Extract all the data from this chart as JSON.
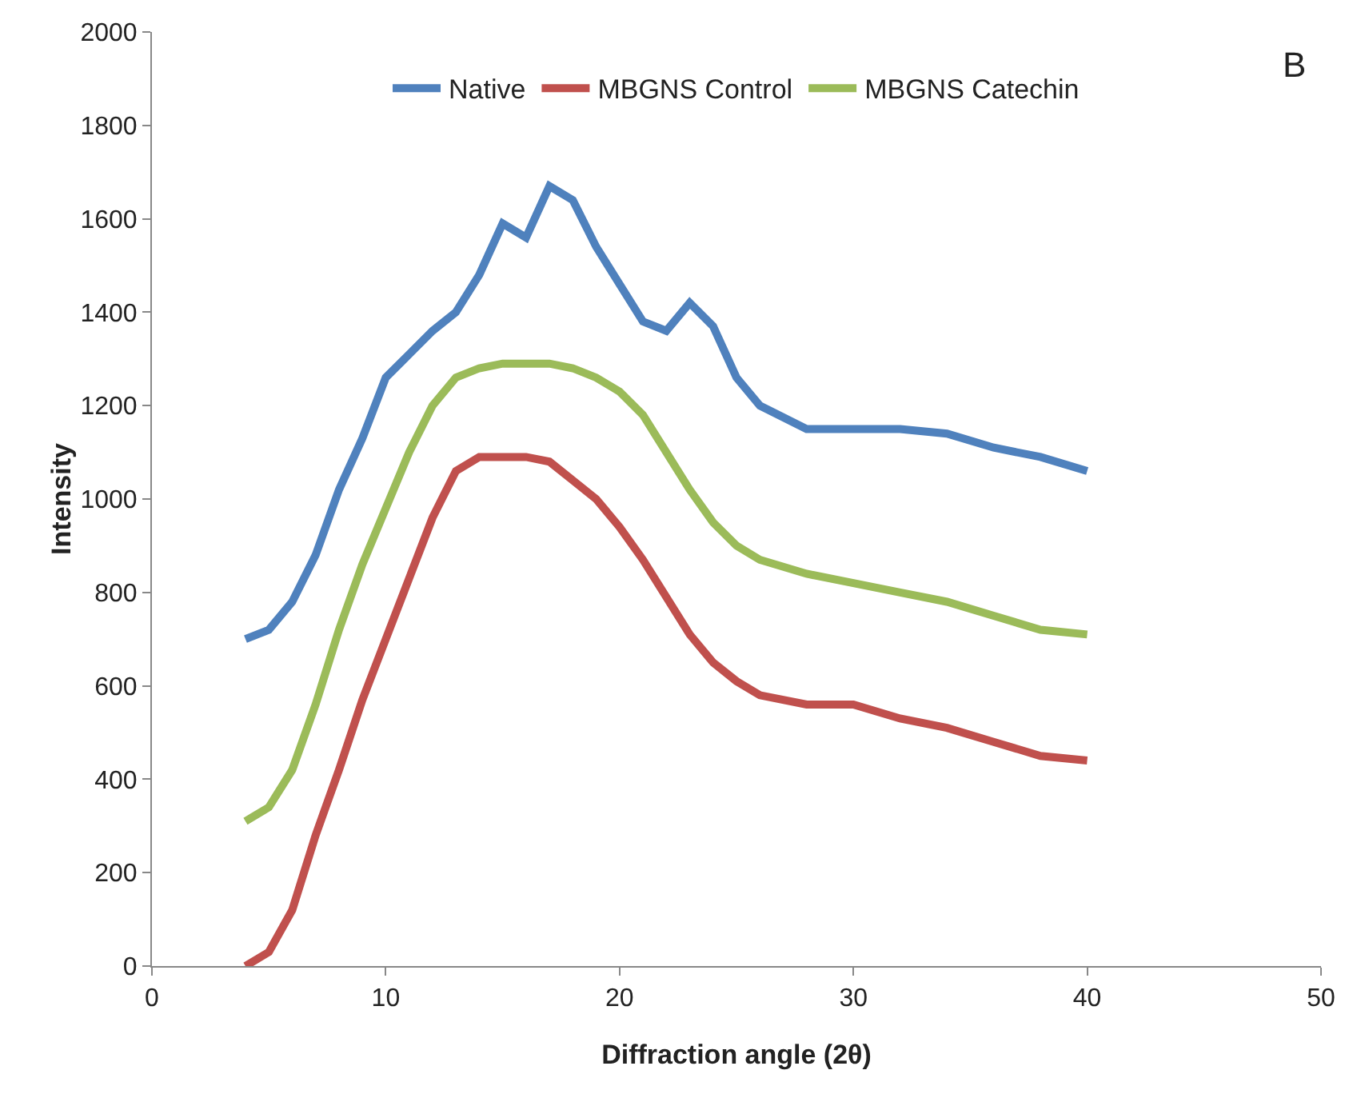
{
  "chart_data": {
    "type": "line",
    "xlabel": "Diffraction angle (2θ)",
    "ylabel": "Intensity",
    "annotations": [
      "B"
    ],
    "x": [
      4,
      5,
      6,
      7,
      8,
      9,
      10,
      11,
      12,
      13,
      14,
      15,
      16,
      17,
      18,
      19,
      20,
      21,
      22,
      23,
      24,
      25,
      26,
      28,
      30,
      32,
      34,
      36,
      38,
      40
    ],
    "xlim": [
      0,
      50
    ],
    "xticks": [
      0,
      10,
      20,
      30,
      40,
      50
    ],
    "ylim": [
      0,
      2000
    ],
    "yticks": [
      0,
      200,
      400,
      600,
      800,
      1000,
      1200,
      1400,
      1600,
      1800,
      2000
    ],
    "grid": false,
    "legend": "top",
    "marker": "none",
    "line_style": "solid",
    "series": [
      {
        "name": "Native",
        "color": "#4f81bd",
        "values": [
          700,
          720,
          780,
          880,
          1020,
          1130,
          1260,
          1310,
          1360,
          1400,
          1480,
          1590,
          1560,
          1670,
          1640,
          1540,
          1460,
          1380,
          1360,
          1420,
          1370,
          1260,
          1200,
          1150,
          1150,
          1150,
          1140,
          1110,
          1090,
          1060
        ]
      },
      {
        "name": "MBGNS Control",
        "color": "#c0504d",
        "values": [
          0,
          30,
          120,
          280,
          420,
          570,
          700,
          830,
          960,
          1060,
          1090,
          1090,
          1090,
          1080,
          1040,
          1000,
          940,
          870,
          790,
          710,
          650,
          610,
          580,
          560,
          560,
          530,
          510,
          480,
          450,
          440
        ]
      },
      {
        "name": "MBGNS Catechin",
        "color": "#9bbb59",
        "values": [
          310,
          340,
          420,
          560,
          720,
          860,
          980,
          1100,
          1200,
          1260,
          1280,
          1290,
          1290,
          1290,
          1280,
          1260,
          1230,
          1180,
          1100,
          1020,
          950,
          900,
          870,
          840,
          820,
          800,
          780,
          750,
          720,
          710
        ]
      }
    ]
  }
}
